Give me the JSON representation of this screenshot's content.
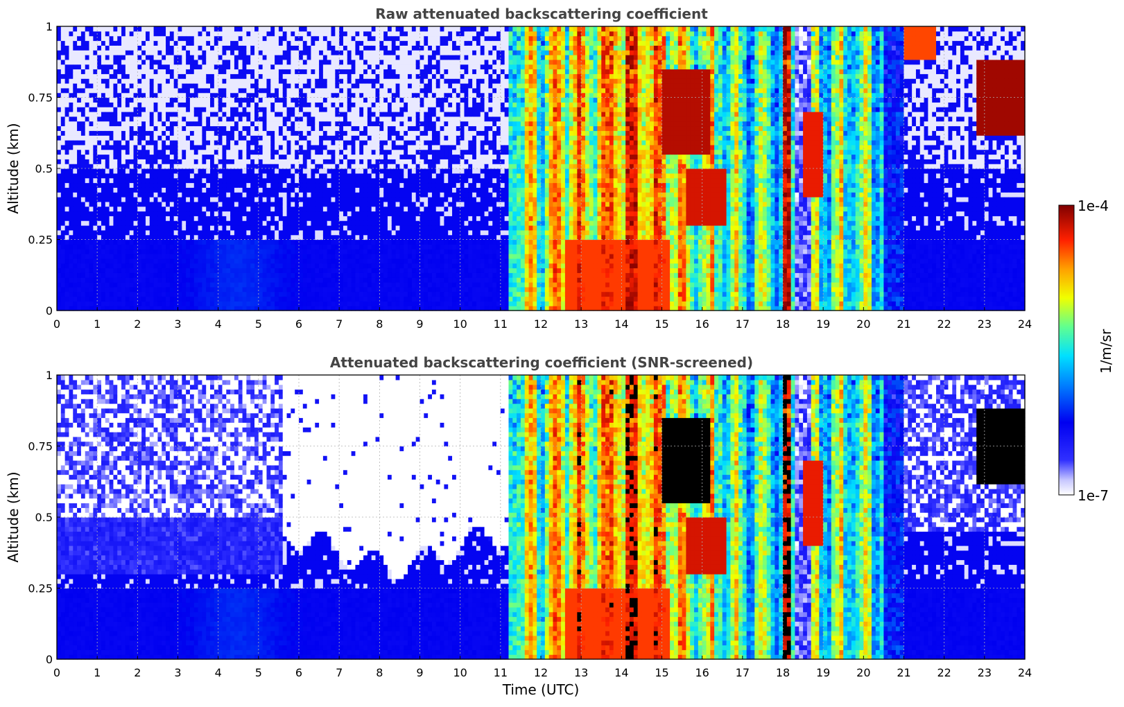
{
  "chart_data": [
    {
      "type": "heatmap",
      "title": "Raw attenuated backscattering coefficient",
      "xlabel": "",
      "ylabel": "Altitude (km)",
      "xlim": [
        0,
        24
      ],
      "ylim": [
        0,
        1
      ],
      "x_ticks": [
        "0",
        "1",
        "2",
        "3",
        "4",
        "5",
        "6",
        "7",
        "8",
        "9",
        "10",
        "11",
        "12",
        "13",
        "14",
        "15",
        "16",
        "17",
        "18",
        "19",
        "20",
        "21",
        "22",
        "23",
        "24"
      ],
      "y_ticks": [
        "0",
        "0.25",
        "0.5",
        "0.75",
        "1"
      ],
      "grid": true,
      "screened": false
    },
    {
      "type": "heatmap",
      "title": "Attenuated backscattering coefficient (SNR-screened)",
      "xlabel": "Time (UTC)",
      "ylabel": "Altitude (km)",
      "xlim": [
        0,
        24
      ],
      "ylim": [
        0,
        1
      ],
      "x_ticks": [
        "0",
        "1",
        "2",
        "3",
        "4",
        "5",
        "6",
        "7",
        "8",
        "9",
        "10",
        "11",
        "12",
        "13",
        "14",
        "15",
        "16",
        "17",
        "18",
        "19",
        "20",
        "21",
        "22",
        "23",
        "24"
      ],
      "y_ticks": [
        "0",
        "0.25",
        "0.5",
        "0.75",
        "1"
      ],
      "grid": true,
      "screened": true
    }
  ],
  "colorbar": {
    "label": "1/m/sr",
    "max_label": "1e-4",
    "min_label": "1e-7",
    "scale": "log",
    "range": [
      1e-07,
      0.0001
    ],
    "colormap": "jet"
  }
}
